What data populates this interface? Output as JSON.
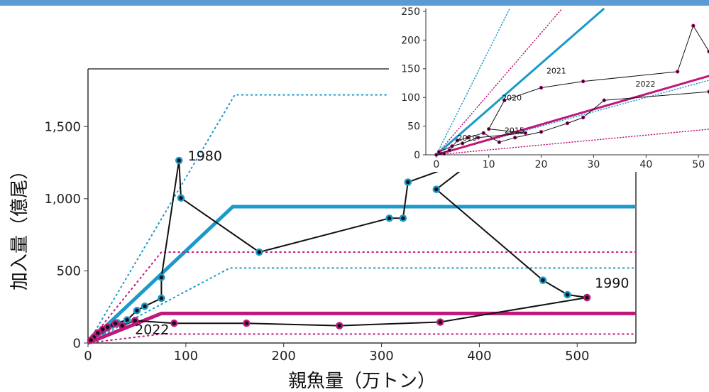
{
  "colors": {
    "blue": "#1a9ac9",
    "magenta": "#c0177a",
    "black": "#111111",
    "banner": "#5b9bd5"
  },
  "chart_data": [
    {
      "type": "line",
      "xlabel": "親魚量（万トン）",
      "ylabel": "加入量（億尾）",
      "xlim": [
        0,
        560
      ],
      "ylim": [
        0,
        1900
      ],
      "xticks": [
        "0",
        "100",
        "200",
        "300",
        "400",
        "500"
      ],
      "yticks": [
        "0",
        "500",
        "1,000",
        "1,500"
      ],
      "annotations": [
        {
          "text": "1980",
          "x": 102,
          "y": 1265
        },
        {
          "text": "1990",
          "x": 518,
          "y": 385
        },
        {
          "text": "2022",
          "x": 48,
          "y": 62
        }
      ],
      "series": [
        {
          "type": "line",
          "color": "blue",
          "dash": false,
          "width": 5,
          "x": [
            0,
            148,
            560
          ],
          "y": [
            0,
            945,
            945
          ]
        },
        {
          "type": "line",
          "color": "blue",
          "dash": true,
          "width": 2,
          "x": [
            0,
            150,
            560
          ],
          "y": [
            0,
            1720,
            1720
          ]
        },
        {
          "type": "line",
          "color": "blue",
          "dash": true,
          "width": 2,
          "x": [
            0,
            145,
            560
          ],
          "y": [
            0,
            520,
            520
          ]
        },
        {
          "type": "line",
          "color": "magenta",
          "dash": false,
          "width": 5,
          "x": [
            0,
            75,
            560
          ],
          "y": [
            0,
            205,
            205
          ]
        },
        {
          "type": "line",
          "color": "magenta",
          "dash": true,
          "width": 2,
          "x": [
            0,
            75,
            560
          ],
          "y": [
            0,
            630,
            630
          ]
        },
        {
          "type": "line",
          "color": "magenta",
          "dash": true,
          "width": 2,
          "x": [
            0,
            75,
            560
          ],
          "y": [
            0,
            62,
            62
          ]
        },
        {
          "type": "trajectory",
          "marker": "blue",
          "x": [
            8,
            15,
            20,
            25,
            30,
            40,
            50,
            58,
            75,
            75,
            93,
            95,
            175,
            308,
            322,
            327,
            399,
            356,
            465,
            490,
            510
          ],
          "y": [
            55,
            80,
            105,
            125,
            140,
            160,
            225,
            255,
            310,
            455,
            1265,
            1005,
            630,
            865,
            865,
            1115,
            1290,
            1065,
            435,
            335,
            315
          ]
        },
        {
          "type": "trajectory",
          "marker": "magenta",
          "x": [
            510,
            360,
            257,
            162,
            88,
            48,
            35,
            28,
            20,
            15,
            10,
            6,
            3
          ],
          "y": [
            315,
            145,
            120,
            137,
            137,
            155,
            120,
            135,
            110,
            95,
            70,
            40,
            20
          ]
        }
      ]
    },
    {
      "type": "line",
      "title": "",
      "xlim": [
        -2,
        52
      ],
      "ylim": [
        0,
        255
      ],
      "xticks": [
        "0",
        "10",
        "20",
        "30",
        "40",
        "50"
      ],
      "yticks": [
        "0",
        "50",
        "100",
        "150",
        "200",
        "250"
      ],
      "annotations": [
        {
          "text": "2021",
          "x": 21,
          "y": 142
        },
        {
          "text": "2022",
          "x": 38,
          "y": 119
        },
        {
          "text": "2020",
          "x": 12.5,
          "y": 95
        },
        {
          "text": "2019",
          "x": 4,
          "y": 25
        },
        {
          "text": "2015",
          "x": 13,
          "y": 38
        }
      ],
      "series": [
        {
          "type": "line",
          "color": "blue",
          "dash": false,
          "width": 3,
          "x": [
            0,
            32
          ],
          "y": [
            0,
            255
          ]
        },
        {
          "type": "line",
          "color": "blue",
          "dash": true,
          "width": 1.5,
          "x": [
            0,
            14
          ],
          "y": [
            0,
            255
          ]
        },
        {
          "type": "line",
          "color": "blue",
          "dash": true,
          "width": 1.5,
          "x": [
            0,
            56
          ],
          "y": [
            0,
            140
          ]
        },
        {
          "type": "line",
          "color": "magenta",
          "dash": false,
          "width": 3,
          "x": [
            0,
            56
          ],
          "y": [
            0,
            148
          ]
        },
        {
          "type": "line",
          "color": "magenta",
          "dash": true,
          "width": 1.5,
          "x": [
            0,
            24
          ],
          "y": [
            0,
            255
          ]
        },
        {
          "type": "line",
          "color": "magenta",
          "dash": true,
          "width": 1.5,
          "x": [
            0,
            56
          ],
          "y": [
            0,
            48
          ]
        },
        {
          "type": "trajectory",
          "marker": "magenta",
          "x": [
            52,
            49,
            46,
            28,
            20,
            13,
            10,
            17,
            8,
            5,
            3,
            0.5,
            1.5,
            0,
            2.5,
            4,
            6,
            9,
            12,
            15,
            20,
            25,
            28,
            32,
            52
          ],
          "y": [
            180,
            225,
            145,
            128,
            117,
            95,
            45,
            38,
            30,
            20,
            15,
            5,
            2,
            0,
            8,
            25,
            30,
            38,
            22,
            30,
            40,
            55,
            65,
            95,
            110
          ]
        }
      ]
    }
  ]
}
